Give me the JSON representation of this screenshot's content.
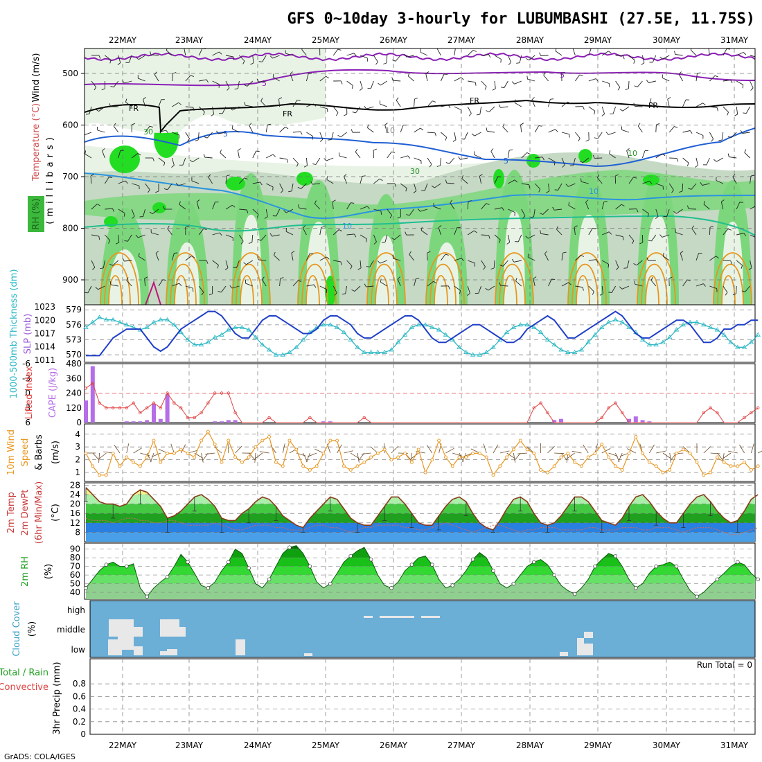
{
  "title": "GFS 0~10day 3-hourly for LUBUMBASHI (27.5E, 11.75S)",
  "credit": "GrADS: COLA/IGES",
  "colors": {
    "rh_light": "#e8f3e5",
    "rh_mid": "#c5d9c4",
    "rh_wet": "#7cd77c",
    "rh_sat": "#22dd22",
    "temp_pos": "#e8961e",
    "temp_freeze": "#000000",
    "temp_5": "#1f5fd4",
    "temp_10": "#2b94e0",
    "thickness": "#2ab7c4",
    "slp": "#1f3fc8",
    "cape": "#b56ee8",
    "li": "#e04040",
    "wind": "#e8961e",
    "cloud_bg": "#6baed6",
    "cloud_patch": "#e8e8e8"
  },
  "chart_data": [
    {
      "id": "upper_air",
      "type": "heatmap",
      "ylabel_parts": [
        "Wind (m/s)",
        "Temperature (°C)",
        "RH (%)"
      ],
      "y_units_label": "(millibars)",
      "yticks": [
        "500",
        "600",
        "700",
        "800",
        "900"
      ],
      "ylim": [
        950,
        450
      ],
      "contour_labels": [
        "FR",
        "FR",
        "FR",
        "FR",
        "5",
        "5",
        "5",
        "5",
        "10",
        "10",
        "10",
        "30",
        "30",
        "10"
      ]
    },
    {
      "id": "thickness_slp",
      "type": "line",
      "ylabel_left": "1000-500mb Thickness (dm)",
      "ylabel_right": "SLP (mb)",
      "yticks_left": [
        "579",
        "576",
        "573",
        "570"
      ],
      "yticks_right": [
        "1023",
        "1020",
        "1017",
        "1014",
        "1011"
      ],
      "series": [
        {
          "name": "1000-500mb Thickness (dm)",
          "ylim": [
            568.5,
            580
          ],
          "values": [
            575.5,
            576.5,
            577.5,
            577,
            577,
            576.5,
            576,
            575.5,
            575,
            575.5,
            576.5,
            577,
            577,
            576,
            574.5,
            573,
            572,
            572,
            572.5,
            573.5,
            574,
            575,
            575.5,
            575.5,
            575,
            573.5,
            572,
            571,
            570,
            570,
            570.5,
            571.5,
            573,
            574.5,
            575.5,
            576,
            576,
            575.5,
            574.5,
            573,
            571.5,
            570.5,
            570.5,
            570.5,
            570.5,
            571,
            572.5,
            574,
            575.5,
            576,
            576,
            575.5,
            575,
            574,
            573,
            571.5,
            570.5,
            570,
            570,
            570.5,
            571.5,
            573,
            574.5,
            575.5,
            576,
            576,
            575.5,
            574.5,
            573,
            572,
            571,
            570.5,
            570.5,
            571,
            572.5,
            574,
            575.5,
            576.5,
            577,
            576.5,
            575.5,
            574.5,
            573,
            572,
            572,
            572.5,
            573.5,
            575,
            576,
            576.5,
            576.5,
            576,
            575.5,
            575,
            574,
            572.5,
            571.5,
            571.5,
            572.5,
            574
          ]
        },
        {
          "name": "SLP (mb)",
          "ylim": [
            1010.5,
            1023.5
          ],
          "values": [
            1012,
            1012,
            1012,
            1014,
            1016,
            1017,
            1018,
            1018,
            1018,
            1016,
            1014,
            1013,
            1014,
            1016,
            1018,
            1019,
            1020,
            1021,
            1022,
            1022,
            1021,
            1019,
            1017,
            1016,
            1016,
            1018,
            1020,
            1021,
            1021,
            1020,
            1019,
            1018,
            1017,
            1017,
            1018,
            1020,
            1021,
            1021,
            1020,
            1019,
            1017,
            1016,
            1016,
            1017,
            1018,
            1019,
            1020,
            1021,
            1021,
            1020,
            1018,
            1016,
            1015,
            1015,
            1016,
            1017,
            1018,
            1019,
            1019,
            1018,
            1017,
            1016,
            1015,
            1015,
            1016,
            1018,
            1019,
            1020,
            1021,
            1020,
            1018,
            1016,
            1016,
            1017,
            1018,
            1019,
            1020,
            1021,
            1022,
            1021,
            1019,
            1017,
            1016,
            1016,
            1017,
            1018,
            1019,
            1020,
            1020,
            1019,
            1017,
            1015,
            1015,
            1016,
            1018,
            1018,
            1019,
            1019,
            1020,
            1020
          ]
        }
      ]
    },
    {
      "id": "cape_li",
      "type": "bar",
      "ylabel_left": "Lifted Index",
      "ylabel_right": "CAPE (J/kg)",
      "yticks_left": [
        "-6",
        "-3",
        "0",
        "3",
        "6"
      ],
      "yticks_right": [
        "480",
        "360",
        "240",
        "120",
        "0"
      ],
      "series": [
        {
          "name": "CAPE (J/kg)",
          "ylim": [
            0,
            480
          ],
          "values": [
            180,
            460,
            0,
            0,
            0,
            0,
            10,
            10,
            10,
            20,
            150,
            30,
            230,
            0,
            0,
            0,
            0,
            0,
            0,
            10,
            10,
            20,
            20,
            0,
            0,
            0,
            0,
            0,
            0,
            0,
            0,
            0,
            0,
            0,
            0,
            10,
            10,
            0,
            0,
            0,
            0,
            0,
            0,
            0,
            0,
            0,
            0,
            0,
            0,
            0,
            0,
            0,
            0,
            0,
            0,
            0,
            0,
            0,
            0,
            0,
            0,
            0,
            0,
            0,
            0,
            0,
            0,
            0,
            0,
            20,
            30,
            0,
            0,
            0,
            0,
            0,
            0,
            0,
            0,
            0,
            30,
            50,
            20,
            10,
            0,
            0,
            0,
            0,
            0,
            0,
            0,
            0,
            0,
            0,
            0,
            0,
            0,
            0,
            0,
            0
          ]
        },
        {
          "name": "Lifted Index",
          "ylim": [
            6,
            -6
          ],
          "values": [
            -1,
            -2,
            2,
            3,
            3,
            3,
            3,
            2,
            4,
            3,
            2,
            3,
            0,
            2,
            3,
            5,
            5,
            4,
            2,
            0,
            0,
            0,
            4,
            6,
            6,
            6,
            6,
            5,
            6,
            6,
            6,
            6,
            6,
            5,
            6,
            6,
            6,
            6,
            6,
            6,
            6,
            5,
            6,
            6,
            6,
            6,
            6,
            6,
            6,
            6,
            6,
            6,
            6,
            6,
            6,
            6,
            6,
            6,
            6,
            6,
            6,
            6,
            6,
            6,
            6,
            6,
            3,
            2,
            4,
            6,
            6,
            6,
            6,
            6,
            6,
            6,
            5,
            3,
            2,
            4,
            6,
            6,
            6,
            6,
            6,
            6,
            6,
            6,
            6,
            6,
            6,
            4,
            3,
            4,
            6,
            6,
            6,
            5,
            4,
            3
          ]
        }
      ]
    },
    {
      "id": "wind10m",
      "type": "line",
      "ylabel": "10m Wind Speed & Barbs (m/s)",
      "yticks": [
        "4",
        "3",
        "2",
        "1"
      ],
      "series": [
        {
          "name": "10m Wind Speed",
          "ylim": [
            0.3,
            4.8
          ],
          "values": [
            2.5,
            1.5,
            0.8,
            0.8,
            2.5,
            1.5,
            2.2,
            1.8,
            1.5,
            2.2,
            3.5,
            1.8,
            2.5,
            2.5,
            2.8,
            2.5,
            2.2,
            3.5,
            4.2,
            3.2,
            1.8,
            3.5,
            2.2,
            1.8,
            2.2,
            3,
            3.5,
            3.8,
            1.8,
            1.5,
            3.5,
            2.8,
            1.5,
            1.2,
            1.5,
            2.5,
            3.5,
            3.5,
            1.5,
            1.2,
            1.5,
            1.8,
            2.2,
            2.5,
            2.8,
            2,
            2.2,
            2.5,
            1.8,
            2.8,
            1,
            2,
            3.5,
            2.2,
            1.5,
            2.2,
            2.2,
            2.5,
            2.5,
            2.2,
            0.8,
            1.5,
            2.2,
            2.8,
            3.5,
            2.8,
            2.5,
            1.2,
            1,
            1.5,
            2.2,
            2.5,
            1.8,
            1.5,
            2.2,
            2.5,
            3.2,
            2.2,
            1.5,
            1.2,
            2.5,
            3.8,
            2.5,
            1.8,
            1.5,
            1,
            1.2,
            2.5,
            2.8,
            2.5,
            1.8,
            0.8,
            1,
            2.2,
            1.8,
            1.5,
            1.5,
            1.8,
            1.2,
            1.5
          ]
        }
      ]
    },
    {
      "id": "temp2m",
      "type": "area",
      "ylabel": "2m Temp 2m DewPt (6hr Min/Max) (°C)",
      "yticks": [
        "28",
        "24",
        "20",
        "16",
        "12",
        "8"
      ],
      "series": [
        {
          "name": "2m Temp",
          "ylim": [
            4,
            29
          ],
          "values": [
            27,
            24,
            21,
            20,
            20,
            19,
            20,
            24,
            26,
            25,
            22,
            19,
            14,
            15,
            17,
            20,
            23,
            24,
            22,
            19,
            14,
            13,
            13,
            16,
            18,
            21,
            23,
            22,
            19,
            15,
            13,
            11,
            10,
            14,
            17,
            20,
            23,
            22,
            18,
            14,
            12,
            11,
            11,
            15,
            19,
            23,
            23,
            20,
            16,
            12,
            11,
            11,
            15,
            19,
            22,
            23,
            21,
            16,
            12,
            10,
            9,
            13,
            18,
            22,
            23,
            21,
            16,
            12,
            11,
            12,
            15,
            19,
            23,
            23,
            21,
            17,
            13,
            12,
            11,
            14,
            19,
            23,
            24,
            21,
            17,
            14,
            12,
            12,
            16,
            20,
            23,
            24,
            21,
            17,
            14,
            12,
            13,
            17,
            22,
            24
          ]
        },
        {
          "name": "2m DewPt",
          "ylim": [
            4,
            29
          ],
          "values": [
            14,
            13,
            13,
            13,
            12,
            13,
            14,
            14,
            13,
            13,
            12,
            12,
            13,
            13,
            12,
            11,
            11,
            11,
            11,
            12,
            11,
            10,
            9,
            9,
            10,
            11,
            11,
            11,
            10,
            10,
            9,
            9,
            9,
            10,
            11,
            11,
            10,
            10,
            9,
            8,
            9,
            10,
            10,
            11,
            11,
            11,
            11,
            10,
            10,
            9,
            9,
            10,
            11,
            12,
            11,
            10,
            9,
            8,
            9,
            10,
            11,
            11,
            10,
            9,
            8,
            9,
            9,
            10,
            10,
            10,
            9,
            9,
            9,
            9,
            10,
            10,
            9,
            9,
            9,
            10,
            10,
            10,
            9,
            9,
            10,
            10,
            10,
            9,
            8,
            9,
            10,
            10,
            10,
            9,
            8,
            7,
            7,
            8,
            9,
            10
          ]
        }
      ]
    },
    {
      "id": "rh2m",
      "type": "area",
      "ylabel": "2m RH (%)",
      "yticks": [
        "90",
        "80",
        "70",
        "60",
        "50",
        "40"
      ],
      "series": [
        {
          "name": "2m RH",
          "ylim": [
            32,
            97
          ],
          "values": [
            45,
            55,
            65,
            72,
            75,
            70,
            70,
            73,
            45,
            35,
            45,
            52,
            58,
            70,
            84,
            75,
            62,
            48,
            45,
            52,
            65,
            75,
            90,
            85,
            68,
            50,
            45,
            55,
            70,
            85,
            92,
            94,
            85,
            70,
            52,
            45,
            50,
            62,
            75,
            82,
            88,
            92,
            78,
            60,
            48,
            45,
            52,
            65,
            72,
            80,
            82,
            72,
            55,
            45,
            48,
            55,
            65,
            78,
            86,
            80,
            65,
            50,
            45,
            50,
            60,
            70,
            75,
            78,
            72,
            60,
            48,
            42,
            38,
            45,
            55,
            70,
            78,
            85,
            82,
            70,
            55,
            45,
            50,
            62,
            70,
            72,
            75,
            70,
            55,
            42,
            35,
            40,
            48,
            55,
            62,
            70,
            75,
            72,
            62,
            55
          ]
        }
      ]
    },
    {
      "id": "cloud",
      "type": "heatmap",
      "ylabel": "Cloud Cover (%)",
      "rows": [
        "high",
        "middle",
        "low"
      ]
    },
    {
      "id": "precip",
      "type": "bar",
      "ylabel_left": "Total / Rain",
      "ylabel_left2": "Convective",
      "ylabel": "3hr Precip (mm)",
      "annotation": "Run Total = 0",
      "yticks": [
        "0.8",
        "0.6",
        "0.4",
        "0.2",
        "0"
      ],
      "ylim": [
        0,
        1
      ],
      "values": []
    }
  ],
  "dates": [
    "22MAY",
    "23MAY",
    "24MAY",
    "25MAY",
    "26MAY",
    "27MAY",
    "28MAY",
    "29MAY",
    "30MAY",
    "31MAY"
  ]
}
